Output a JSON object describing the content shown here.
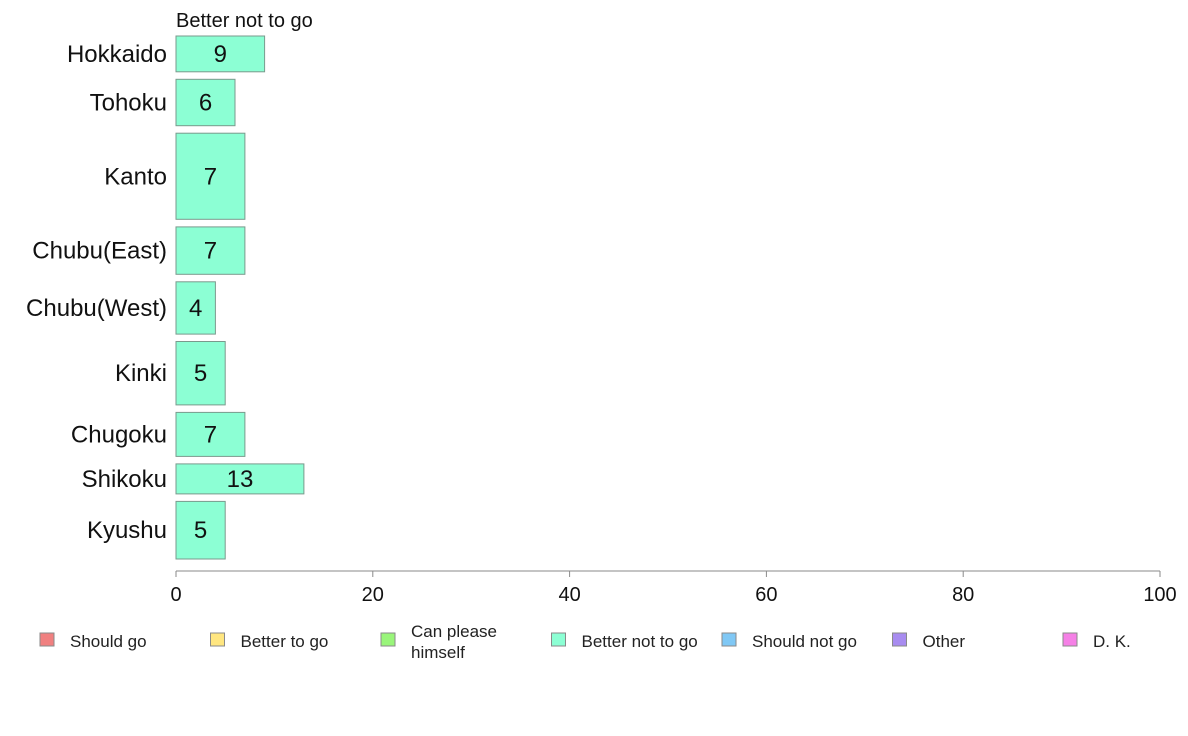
{
  "chart_data": {
    "type": "bar",
    "orientation": "horizontal",
    "series_title": "Better not to go",
    "categories": [
      "Hokkaido",
      "Tohoku",
      "Kanto",
      "Chubu(East)",
      "Chubu(West)",
      "Kinki",
      "Chugoku",
      "Shikoku",
      "Kyushu"
    ],
    "series": [
      {
        "name": "Better not to go",
        "values": [
          9,
          6,
          7,
          7,
          4,
          5,
          7,
          13,
          5
        ],
        "color": "#8cffd4"
      }
    ],
    "relative_bar_heights": [
      0.74,
      0.96,
      1.78,
      0.98,
      1.08,
      1.31,
      0.91,
      0.62,
      1.19
    ],
    "xlim": [
      0,
      100
    ],
    "xticks": [
      0,
      20,
      40,
      60,
      80,
      100
    ],
    "xtick_labels": [
      "0",
      "20",
      "40",
      "60",
      "80",
      "100"
    ],
    "grid": false,
    "legend_position": "bottom",
    "legend": [
      {
        "label": [
          "Should go"
        ],
        "color": "#f08080"
      },
      {
        "label": [
          "Better to go"
        ],
        "color": "#ffe680"
      },
      {
        "label": [
          "Can please",
          "himself"
        ],
        "color": "#99f57a"
      },
      {
        "label": [
          "Better not to go"
        ],
        "color": "#8cffd4"
      },
      {
        "label": [
          "Should not go"
        ],
        "color": "#80c8f5"
      },
      {
        "label": [
          "Other"
        ],
        "color": "#a88cf0"
      },
      {
        "label": [
          "D. K."
        ],
        "color": "#f580e6"
      }
    ]
  }
}
